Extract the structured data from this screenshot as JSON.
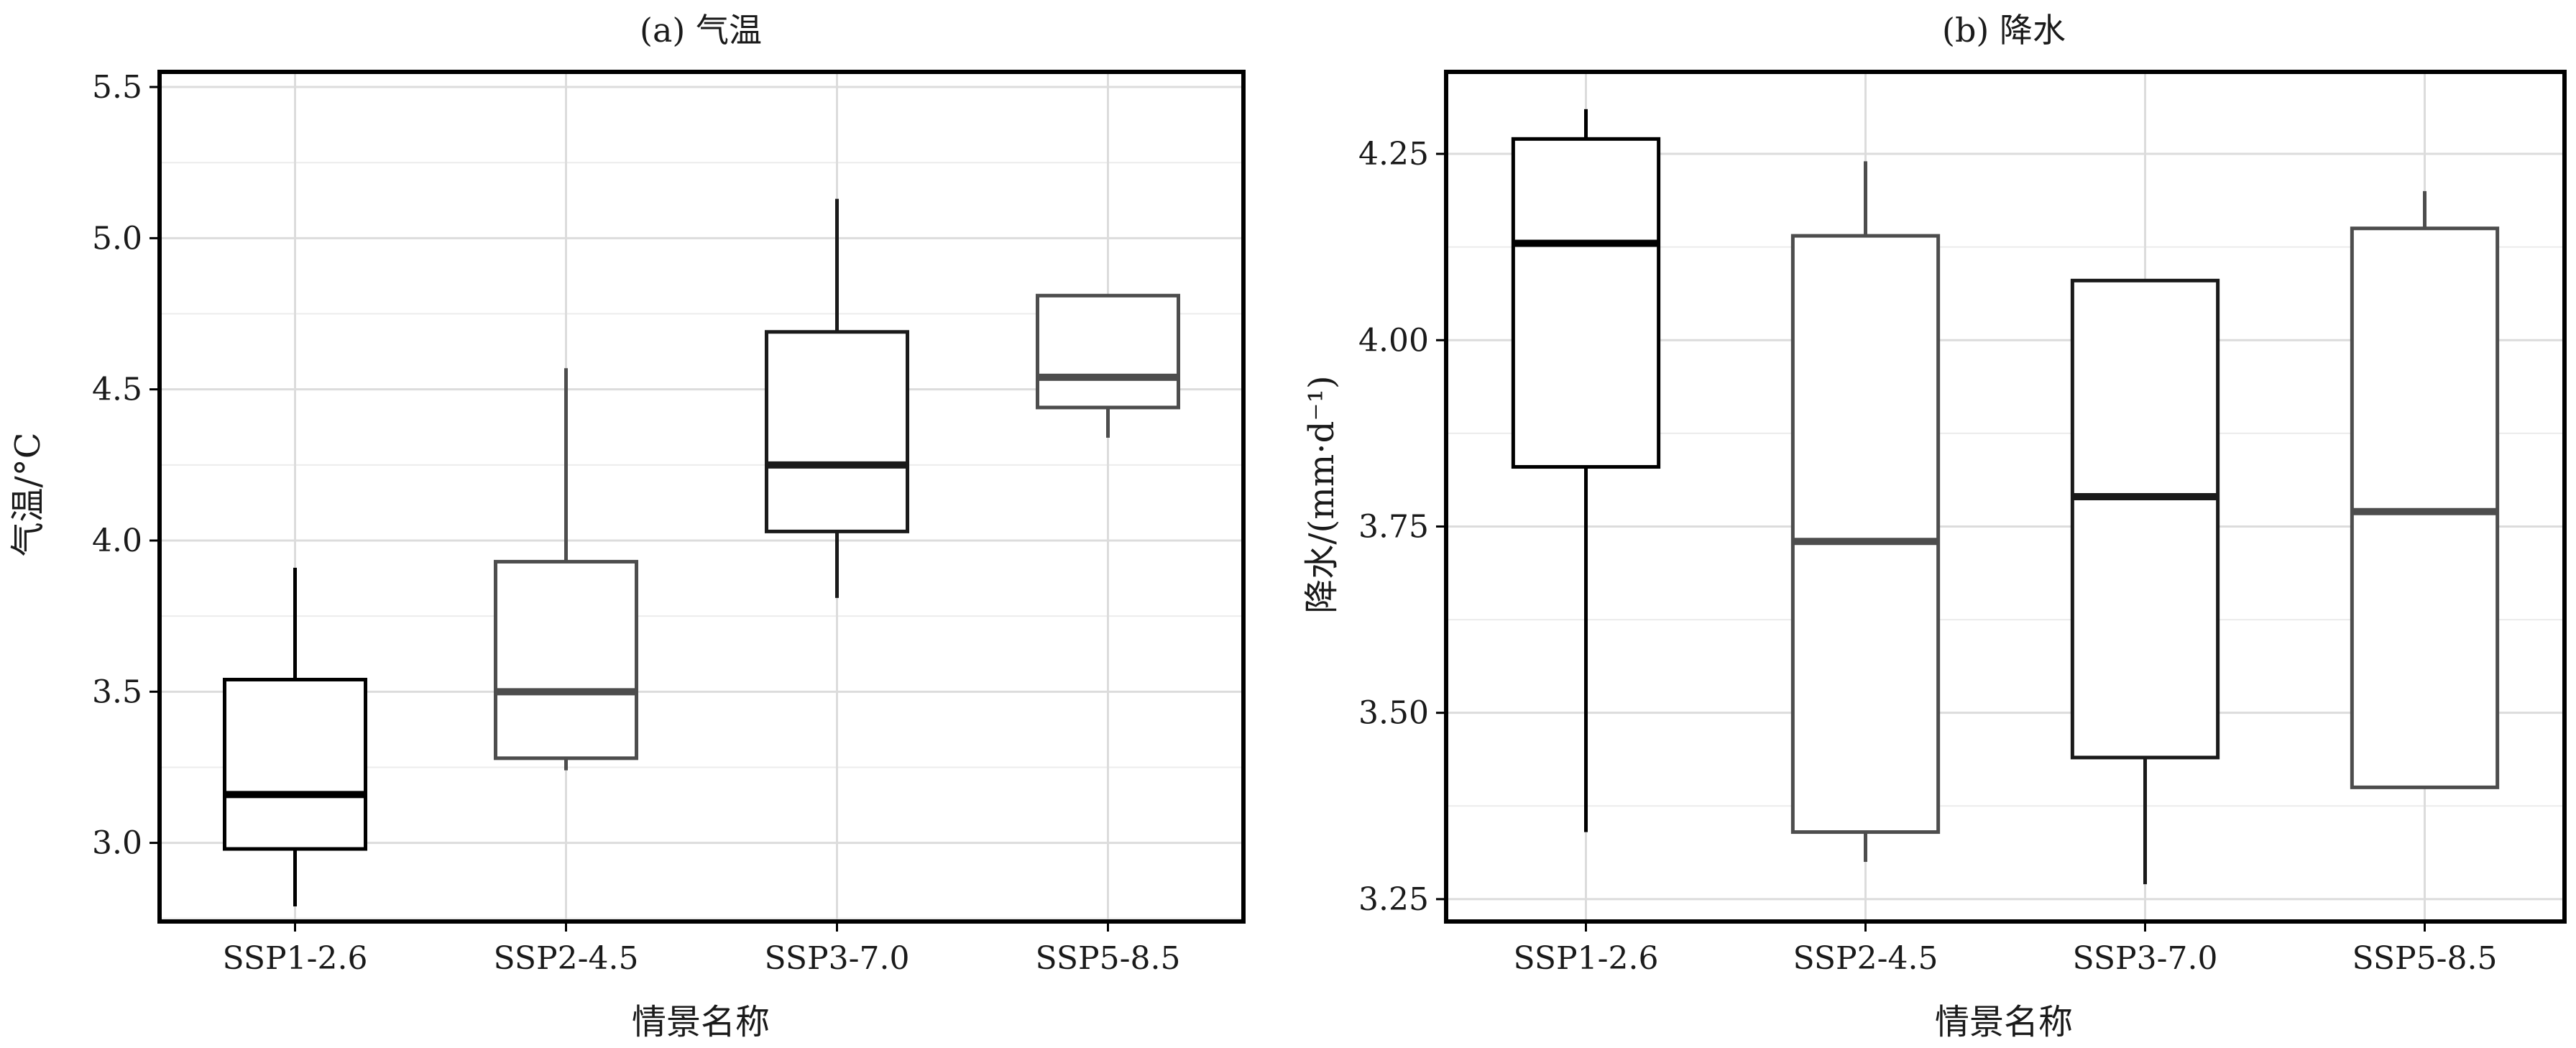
{
  "chart_data": [
    {
      "type": "box",
      "title": "(a) 气温",
      "xlabel": "情景名称",
      "ylabel": "气温/°C",
      "ylim": [
        2.74,
        5.55
      ],
      "yticks": [
        3.0,
        3.5,
        4.0,
        4.5,
        5.0,
        5.5
      ],
      "ytick_labels": [
        "3.0",
        "3.5",
        "4.0",
        "4.5",
        "5.0",
        "5.5"
      ],
      "grid": true,
      "categories": [
        "SSP1-2.6",
        "SSP2-4.5",
        "SSP3-7.0",
        "SSP5-8.5"
      ],
      "boxes": [
        {
          "category": "SSP1-2.6",
          "min": 2.79,
          "q1": 2.98,
          "median": 3.16,
          "q3": 3.54,
          "max": 3.91,
          "color": "#000000"
        },
        {
          "category": "SSP2-4.5",
          "min": 3.24,
          "q1": 3.28,
          "median": 3.5,
          "q3": 3.93,
          "max": 4.57,
          "color": "#4d4d4d"
        },
        {
          "category": "SSP3-7.0",
          "min": 3.81,
          "q1": 4.03,
          "median": 4.25,
          "q3": 4.69,
          "max": 5.13,
          "color": "#1a1a1a"
        },
        {
          "category": "SSP5-8.5",
          "min": 4.34,
          "q1": 4.44,
          "median": 4.54,
          "q3": 4.81,
          "max": 4.81,
          "color": "#4d4d4d"
        }
      ]
    },
    {
      "type": "box",
      "title": "(b) 降水",
      "xlabel": "情景名称",
      "ylabel": "降水/(mm·d⁻¹)",
      "ylim": [
        3.22,
        4.36
      ],
      "yticks": [
        3.25,
        3.5,
        3.75,
        4.0,
        4.25
      ],
      "ytick_labels": [
        "3.25",
        "3.50",
        "3.75",
        "4.00",
        "4.25"
      ],
      "grid": true,
      "categories": [
        "SSP1-2.6",
        "SSP2-4.5",
        "SSP3-7.0",
        "SSP5-8.5"
      ],
      "boxes": [
        {
          "category": "SSP1-2.6",
          "min": 3.34,
          "q1": 3.83,
          "median": 4.13,
          "q3": 4.27,
          "max": 4.31,
          "color": "#000000"
        },
        {
          "category": "SSP2-4.5",
          "min": 3.3,
          "q1": 3.34,
          "median": 3.73,
          "q3": 4.14,
          "max": 4.24,
          "color": "#4d4d4d"
        },
        {
          "category": "SSP3-7.0",
          "min": 3.27,
          "q1": 3.44,
          "median": 3.79,
          "q3": 4.08,
          "max": 4.08,
          "color": "#1a1a1a"
        },
        {
          "category": "SSP5-8.5",
          "min": 3.4,
          "q1": 3.4,
          "median": 3.77,
          "q3": 4.15,
          "max": 4.2,
          "color": "#4d4d4d"
        }
      ]
    }
  ]
}
